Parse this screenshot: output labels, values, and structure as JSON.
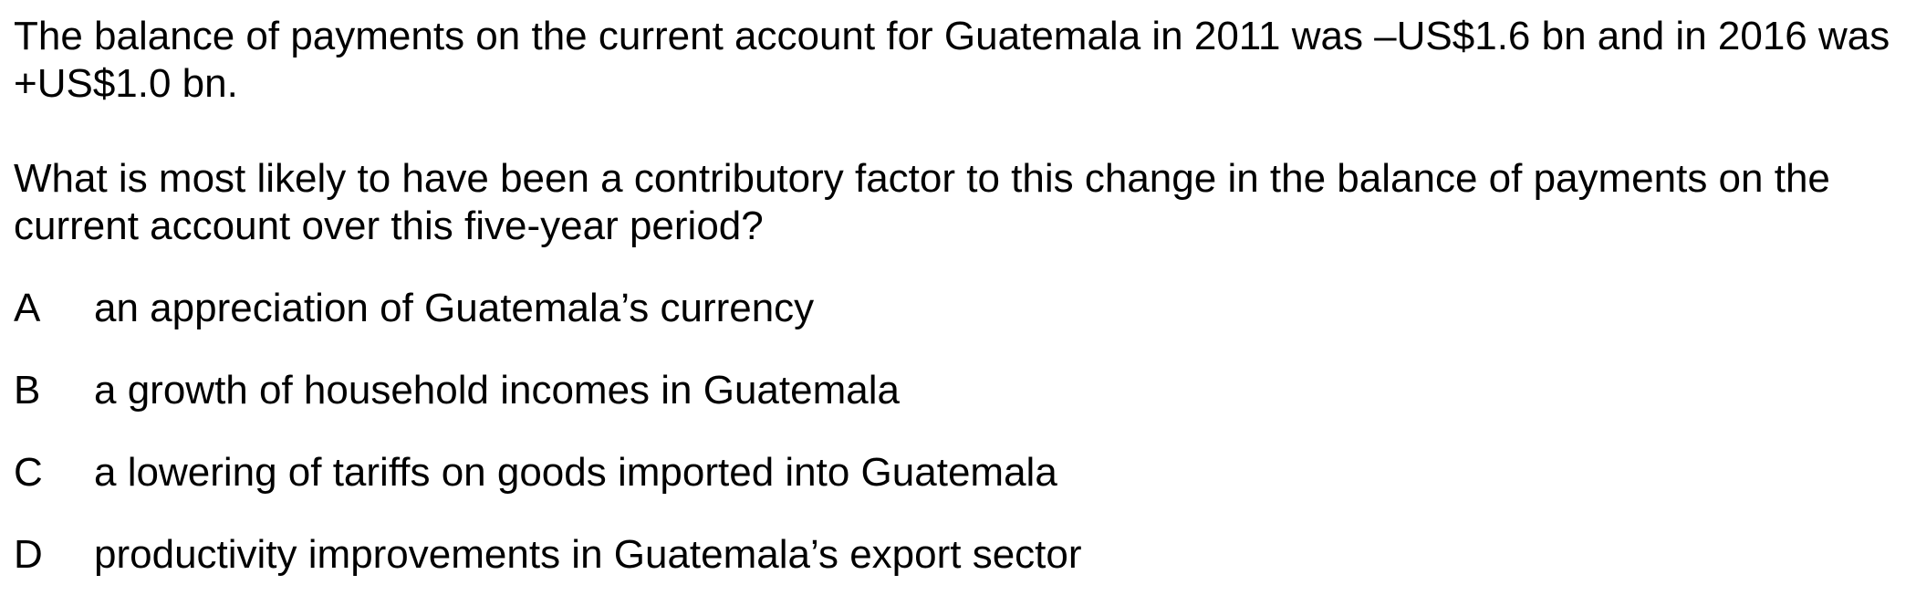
{
  "question": {
    "stem_paragraph_1": "The balance of payments on the current account for Guatemala in 2011 was –US$1.6 bn and in 2016 was +US$1.0 bn.",
    "stem_paragraph_2": "What is most likely to have been a contributory factor to this change in the balance of payments on the current account over this five-year period?",
    "options": [
      {
        "letter": "A",
        "text": "an appreciation of Guatemala’s currency"
      },
      {
        "letter": "B",
        "text": "a growth of household incomes in Guatemala"
      },
      {
        "letter": "C",
        "text": "a lowering of tariffs on goods imported into Guatemala"
      },
      {
        "letter": "D",
        "text": "productivity improvements in Guatemala’s export sector"
      }
    ]
  }
}
